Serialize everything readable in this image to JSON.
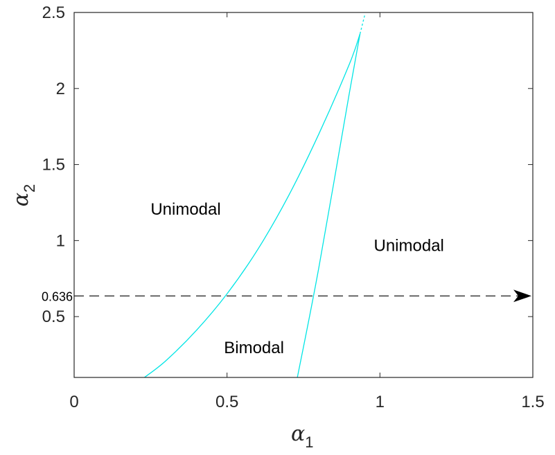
{
  "chart_data": {
    "type": "line",
    "title": "",
    "xlabel": {
      "symbol": "α",
      "subscript": "1"
    },
    "ylabel": {
      "symbol": "α",
      "subscript": "2"
    },
    "xlim": [
      0,
      1.5
    ],
    "ylim": [
      0.1,
      2.5
    ],
    "xticks": [
      {
        "value": 0,
        "label": "0"
      },
      {
        "value": 0.5,
        "label": "0.5"
      },
      {
        "value": 1,
        "label": "1"
      },
      {
        "value": 1.5,
        "label": "1.5"
      }
    ],
    "yticks": [
      {
        "value": 0.5,
        "label": "0.5"
      },
      {
        "value": 1,
        "label": "1"
      },
      {
        "value": 1.5,
        "label": "1.5"
      },
      {
        "value": 2,
        "label": "2"
      },
      {
        "value": 2.5,
        "label": "2.5"
      }
    ],
    "grid": false,
    "series": [
      {
        "color": "#00e5e5",
        "x": [
          0.23,
          0.3,
          0.4,
          0.5,
          0.6,
          0.7,
          0.8,
          0.9,
          0.935
        ],
        "y": [
          0.1,
          0.21,
          0.41,
          0.65,
          0.94,
          1.29,
          1.7,
          2.16,
          2.36
        ]
      },
      {
        "color": "#00e5e5",
        "x": [
          0.73,
          0.8,
          0.9,
          0.935
        ],
        "y": [
          0.1,
          0.82,
          1.97,
          2.36
        ]
      },
      {
        "color": "#00e5e5",
        "dashed": true,
        "x": [
          0.935,
          0.95
        ],
        "y": [
          2.36,
          2.48
        ]
      }
    ],
    "reference_line": {
      "y": 0.636,
      "label": "0.636",
      "style": "dashed",
      "arrow": "right",
      "x_start": 0,
      "x_end": 1.5,
      "color": "#000000"
    },
    "annotations": [
      {
        "text": "Unimodal",
        "x": 0.25,
        "y": 1.17
      },
      {
        "text": "Unimodal",
        "x": 0.98,
        "y": 0.93
      },
      {
        "text": "Bimodal",
        "x": 0.49,
        "y": 0.26
      }
    ]
  }
}
